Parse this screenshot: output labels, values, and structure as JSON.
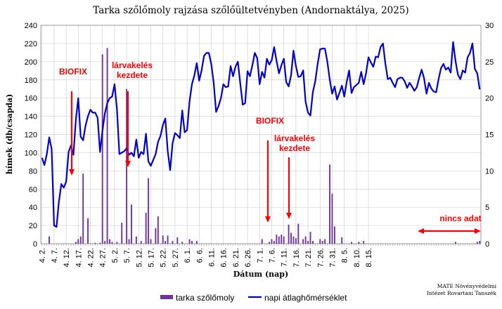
{
  "chart_data": {
    "type": "bar+line",
    "title": "Tarka szőlőmoly rajzása szőlőültetvényben (Andornaktálya, 2025)",
    "xlabel": "Dátum (nap)",
    "ylabel": "hímek (db/csapda)",
    "y_left_lim": [
      0,
      240
    ],
    "y_left_ticks": [
      "0",
      "20",
      "40",
      "60",
      "80",
      "100",
      "120",
      "140",
      "160",
      "180",
      "200",
      "220",
      "240"
    ],
    "y_right_lim": [
      0,
      30
    ],
    "y_right_ticks": [
      "0",
      "5",
      "10",
      "15",
      "20",
      "25",
      "30"
    ],
    "grid": true,
    "legend_position": "bottom",
    "x_tick_labels": [
      "4. 2.",
      "4. 7.",
      "4. 12.",
      "4. 17.",
      "4. 22.",
      "4. 27.",
      "5. 2.",
      "5. 7.",
      "5. 12.",
      "5. 17.",
      "5. 22.",
      "5. 27.",
      "6. 1.",
      "6. 6.",
      "6. 11.",
      "6. 16.",
      "6. 21.",
      "6. 26.",
      "7. 1.",
      "7. 6.",
      "7. 11.",
      "7. 16.",
      "7. 21.",
      "7. 26.",
      "7. 31.",
      "8. 5.",
      "8. 10.",
      "8. 15."
    ],
    "series": [
      {
        "name": "tarka szőlőmoly",
        "kind": "bar",
        "axis": "left",
        "color": "#7030a0",
        "values": [
          0,
          0,
          0,
          8,
          0,
          0,
          0,
          0,
          0,
          0,
          0,
          0,
          0,
          0,
          2,
          5,
          8,
          77,
          0,
          28,
          0,
          0,
          1,
          0,
          1,
          208,
          3,
          215,
          5,
          2,
          0,
          2,
          0,
          23,
          0,
          170,
          5,
          43,
          0,
          8,
          0,
          3,
          0,
          34,
          72,
          5,
          0,
          17,
          30,
          0,
          9,
          3,
          9,
          0,
          3,
          0,
          7,
          0,
          2,
          0,
          0,
          5,
          3,
          0,
          3,
          0,
          0,
          0,
          0,
          0,
          0,
          0,
          0,
          0,
          0,
          0,
          0,
          0,
          0,
          0,
          0,
          0,
          0,
          0,
          0,
          0,
          0,
          0,
          0,
          0,
          0,
          5,
          0,
          0,
          2,
          5,
          3,
          10,
          8,
          10,
          8,
          0,
          21,
          12,
          8,
          6,
          22,
          0,
          5,
          8,
          3,
          13,
          3,
          0,
          0,
          5,
          3,
          5,
          0,
          87,
          55,
          19,
          0,
          0,
          7,
          0,
          0,
          0,
          2,
          0,
          0,
          2,
          0,
          3,
          0,
          0,
          0,
          0,
          0,
          0,
          0,
          0,
          0,
          0,
          0,
          0,
          0,
          0,
          0,
          0,
          0,
          0,
          0,
          0,
          0,
          0,
          0,
          0,
          0,
          0,
          0,
          0,
          0,
          0,
          0,
          0,
          0,
          0,
          0,
          0,
          0,
          2,
          0,
          0,
          0,
          0,
          0,
          0,
          0,
          0,
          2,
          3,
          0,
          0
        ]
      },
      {
        "name": "napi átlaghőmérséklet",
        "kind": "line",
        "axis": "right",
        "color": "#0000cc",
        "values": [
          11.8,
          10.8,
          12.3,
          14.6,
          13,
          2.5,
          2.3,
          5.8,
          8.2,
          7.7,
          8.5,
          12.6,
          13.5,
          12.2,
          17,
          20,
          14.7,
          14.2,
          16.2,
          17.5,
          18.4,
          18,
          18,
          17.3,
          12.6,
          15.5,
          17.9,
          19.3,
          20,
          20.2,
          21.9,
          18.5,
          12.3,
          12.5,
          12.7,
          13.1,
          12.2,
          12.5,
          12,
          14.3,
          11.8,
          12.6,
          12.3,
          15.1,
          11.3,
          10.7,
          11.5,
          12.3,
          14,
          14.8,
          16.3,
          17.2,
          12.7,
          10.1,
          13.8,
          15.2,
          14.9,
          14.5,
          18.3,
          15.3,
          15.6,
          19.5,
          21.9,
          23.1,
          24.8,
          22.4,
          23.8,
          25.8,
          26.2,
          26.2,
          24.7,
          22.1,
          18.1,
          18.9,
          20,
          21.9,
          21.5,
          21.6,
          24.4,
          23,
          24.3,
          25,
          22,
          19.1,
          19.3,
          23.7,
          23,
          24.5,
          26.2,
          25.5,
          21.9,
          23.6,
          22.8,
          25.4,
          24.6,
          25.2,
          27,
          25.1,
          23.4,
          24.5,
          25.4,
          22.2,
          21.6,
          23.1,
          26.5,
          24.4,
          22.9,
          23,
          23.8,
          19.5,
          18,
          17.6,
          20.8,
          22.3,
          24.7,
          26.7,
          26.8,
          26.8,
          25,
          22.5,
          20.6,
          21.6,
          19.8,
          20.7,
          21.7,
          20.2,
          22.2,
          23.8,
          20.7,
          21.5,
          21.8,
          22.1,
          23.6,
          21.9,
          23.4,
          25.6,
          24.9,
          24.3,
          25.7,
          25.6,
          27,
          27.5,
          24.7,
          22.6,
          22.8,
          22.1,
          21.5,
          22.6,
          22.8,
          22.8,
          22.3,
          21.4,
          22.1,
          21.6,
          21,
          21.5,
          22.8,
          23.9,
          22.7,
          20.6,
          22.1,
          21.3,
          20.9,
          20.8,
          22.6,
          24.1,
          24.7,
          23.9,
          24.2,
          23.5,
          27.7,
          25.1,
          23.2,
          22.6,
          23.8,
          23.5,
          25.6,
          26.2,
          27.5,
          24,
          23.4,
          21.2
        ]
      }
    ],
    "annotations": [
      {
        "text": [
          "BIOFIX"
        ],
        "color": "#ff0000"
      },
      {
        "text": [
          "lárvakelés",
          "kezdete"
        ],
        "color": "#ff0000"
      },
      {
        "text": [
          "BIOFIX"
        ],
        "color": "#ff0000"
      },
      {
        "text": [
          "lárvakelés",
          "kezdete"
        ],
        "color": "#ff0000"
      },
      {
        "text": [
          "nincs adat"
        ],
        "color": "#ff0000"
      }
    ],
    "source": [
      "MATE Növényvédelmi",
      "Intézet Rovartani Tanszék"
    ]
  }
}
